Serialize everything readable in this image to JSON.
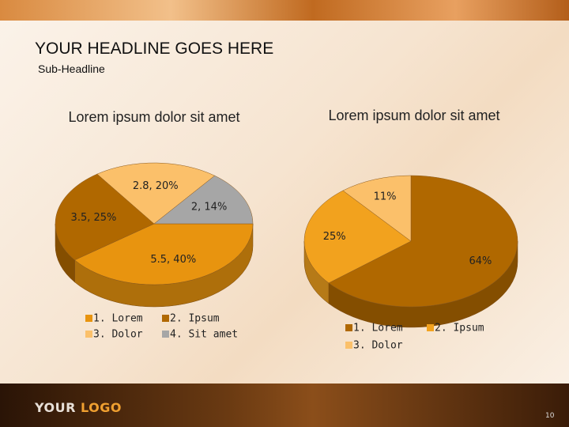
{
  "header": {
    "title": "YOUR HEADLINE GOES HERE",
    "subtitle": "Sub-Headline"
  },
  "chart_data": [
    {
      "type": "pie",
      "title": "Lorem ipsum dolor sit amet",
      "categories": [
        "1. Lorem",
        "2. Ipsum",
        "3. Dolor",
        "4. Sit amet"
      ],
      "values": [
        5.5,
        3.5,
        2.8,
        2
      ],
      "value_labels": [
        "5.5, 40%",
        "3.5, 25%",
        "2.8, 20%",
        "2, 14%"
      ],
      "colors": [
        "#e8940f",
        "#b06800",
        "#fbc06a",
        "#a6a6a6"
      ],
      "legend": "bottom"
    },
    {
      "type": "pie",
      "title": "Lorem ipsum dolor sit amet",
      "categories": [
        "1. Lorem",
        "2. Ipsum",
        "3. Dolor"
      ],
      "values": [
        64,
        25,
        11
      ],
      "value_labels": [
        "64%",
        "25%",
        "11%"
      ],
      "colors": [
        "#b06800",
        "#f2a21e",
        "#fbc06a"
      ],
      "legend": "bottom"
    }
  ],
  "footer": {
    "logo": [
      "YOUR",
      "LOGO"
    ],
    "page": "10"
  }
}
